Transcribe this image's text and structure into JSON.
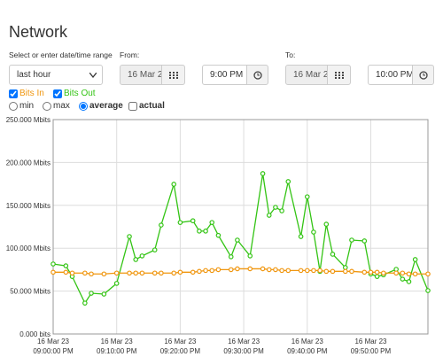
{
  "header": {
    "title": "Network"
  },
  "controls": {
    "range_label": "Select or enter date/time range",
    "range": "last hour",
    "from_label": "From:",
    "from_date": "16 Mar 2",
    "from_time": "9:00 PM",
    "to_label": "To:",
    "to_date": "16 Mar 2",
    "to_time": "10:00 PM",
    "modes": [
      "min",
      "max",
      "average"
    ],
    "actual": "actual"
  },
  "chart_data": {
    "type": "line",
    "x": [
      0,
      2,
      3,
      5,
      6,
      8,
      10,
      12,
      13,
      14,
      16,
      17,
      19,
      20,
      22,
      23,
      24,
      25,
      26,
      28,
      29,
      31,
      33,
      34,
      35,
      36,
      37,
      39,
      40,
      41,
      42,
      43,
      44,
      46,
      47,
      49,
      50,
      51,
      52,
      54,
      55,
      56,
      57,
      59
    ],
    "series": [
      {
        "name": "Bits In",
        "color": "#f0960f",
        "values": [
          72,
          72,
          71,
          71,
          70,
          70,
          71,
          71,
          71,
          71,
          71,
          71,
          71,
          72,
          72,
          73,
          74,
          74,
          75,
          75,
          76,
          76,
          76,
          75,
          75,
          74,
          74,
          74,
          74,
          74,
          74,
          73,
          73,
          73,
          73,
          72,
          72,
          72,
          71,
          71,
          71,
          70,
          70,
          70
        ]
      },
      {
        "name": "Bits Out",
        "color": "#33c414",
        "values": [
          81.6,
          79.5,
          67,
          36,
          47.5,
          46.5,
          59,
          113.6,
          86.8,
          91,
          98,
          127,
          174.6,
          130,
          132,
          120,
          120,
          130,
          115,
          90,
          109.5,
          91,
          187,
          138.4,
          147.7,
          143.6,
          177.7,
          113.6,
          160,
          118.8,
          73,
          128,
          93,
          77.5,
          109.5,
          108.5,
          70,
          67,
          69,
          75.4,
          64,
          61,
          86.8,
          50.6
        ]
      }
    ],
    "xlim": [
      0,
      59
    ],
    "xticks": [
      {
        "value": 0,
        "label": "09:00:00 PM",
        "date": "16 Mar 23"
      },
      {
        "value": 10,
        "label": "09:10:00 PM",
        "date": "16 Mar 23"
      },
      {
        "value": 20,
        "label": "09:20:00 PM",
        "date": "16 Mar 23"
      },
      {
        "value": 30,
        "label": "09:30:00 PM",
        "date": "16 Mar 23"
      },
      {
        "value": 40,
        "label": "09:40:00 PM",
        "date": "16 Mar 23"
      },
      {
        "value": 50,
        "label": "09:50:00 PM",
        "date": "16 Mar 23"
      }
    ],
    "ylim": [
      0,
      250
    ],
    "yticks": [
      {
        "value": 0,
        "label": "0.000 bits"
      },
      {
        "value": 50,
        "label": "50.000 Mbits"
      },
      {
        "value": 100,
        "label": "100.000 Mbits"
      },
      {
        "value": 150,
        "label": "150.000 Mbits"
      },
      {
        "value": 200,
        "label": "200.000 Mbits"
      },
      {
        "value": 250,
        "label": "250.000 Mbits"
      }
    ],
    "grid": true
  }
}
